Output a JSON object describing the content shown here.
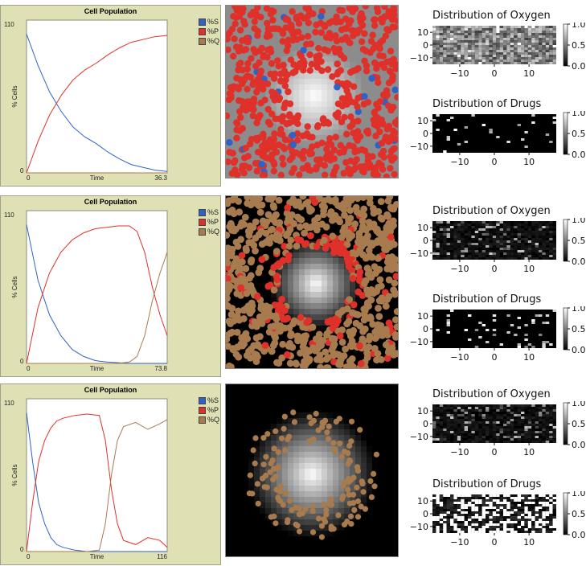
{
  "panels": [
    {
      "plot": {
        "title": "Cell Population",
        "y_label": "% Cells",
        "x_label": "Time",
        "y_max_label": "110",
        "y_min_label": "0",
        "x_min_label": "0",
        "x_max_label": "36.3"
      },
      "legend": [
        {
          "label": "%S",
          "color": "#2f62c8"
        },
        {
          "label": "%P",
          "color": "#e0302a"
        },
        {
          "label": "%Q",
          "color": "#a87b4f"
        }
      ],
      "world_view": {
        "background": "gray",
        "cell_colors": [
          "#e0302a",
          "#2f62c8"
        ]
      },
      "oxygen": {
        "title": "Distribution of Oxygen",
        "y_ticks": [
          "10",
          "0",
          "−10"
        ],
        "x_ticks": [
          "−10",
          "0",
          "10"
        ],
        "colorbar_ticks": [
          "1.0",
          "0.5",
          "0.0"
        ]
      },
      "drugs": {
        "title": "Distribution of Drugs",
        "y_ticks": [
          "10",
          "0",
          "−10"
        ],
        "x_ticks": [
          "−10",
          "0",
          "10"
        ],
        "colorbar_ticks": [
          "1.0",
          "0.5",
          "0.0"
        ]
      }
    },
    {
      "plot": {
        "title": "Cell Population",
        "y_label": "% Cells",
        "x_label": "Time",
        "y_max_label": "110",
        "y_min_label": "0",
        "x_min_label": "0",
        "x_max_label": "73.8"
      },
      "legend": [
        {
          "label": "%S",
          "color": "#2f62c8"
        },
        {
          "label": "%P",
          "color": "#e0302a"
        },
        {
          "label": "%Q",
          "color": "#a87b4f"
        }
      ],
      "world_view": {
        "background": "black",
        "cell_colors": [
          "#a87b4f",
          "#e0302a"
        ]
      },
      "oxygen": {
        "title": "Distribution of Oxygen",
        "y_ticks": [
          "10",
          "0",
          "−10"
        ],
        "x_ticks": [
          "−10",
          "0",
          "10"
        ],
        "colorbar_ticks": [
          "1.0",
          "0.5",
          "0.0"
        ]
      },
      "drugs": {
        "title": "Distribution of Drugs",
        "y_ticks": [
          "10",
          "0",
          "−10"
        ],
        "x_ticks": [
          "−10",
          "0",
          "10"
        ],
        "colorbar_ticks": [
          "1.0",
          "0.5",
          "0.0"
        ]
      }
    },
    {
      "plot": {
        "title": "Cell Population",
        "y_label": "% Cells",
        "x_label": "Time",
        "y_max_label": "110",
        "y_min_label": "0",
        "x_min_label": "0",
        "x_max_label": "116"
      },
      "legend": [
        {
          "label": "%S",
          "color": "#2f62c8"
        },
        {
          "label": "%P",
          "color": "#e0302a"
        },
        {
          "label": "%Q",
          "color": "#a87b4f"
        }
      ],
      "world_view": {
        "background": "black",
        "cell_colors": [
          "#a87b4f"
        ]
      },
      "oxygen": {
        "title": "Distribution of Oxygen",
        "y_ticks": [
          "10",
          "0",
          "−10"
        ],
        "x_ticks": [
          "−10",
          "0",
          "10"
        ],
        "colorbar_ticks": [
          "1.0",
          "0.5",
          "0.0"
        ]
      },
      "drugs": {
        "title": "Distribution of Drugs",
        "y_ticks": [
          "10",
          "0",
          "−10"
        ],
        "x_ticks": [
          "−10",
          "0",
          "10"
        ],
        "colorbar_ticks": [
          "1.0",
          "0.5",
          "0.0"
        ]
      }
    }
  ],
  "chart_data": [
    {
      "type": "line",
      "title": "Cell Population",
      "xlabel": "Time",
      "ylabel": "% Cells",
      "xlim": [
        0,
        36.3
      ],
      "ylim": [
        0,
        110
      ],
      "x": [
        0,
        3,
        6,
        9,
        12,
        15,
        18,
        21,
        24,
        27,
        30,
        33,
        36.3
      ],
      "series": [
        {
          "name": "%S",
          "color": "#2f62c8",
          "values": [
            100,
            77,
            58,
            44,
            33,
            26,
            21,
            15,
            10,
            6,
            4,
            2,
            1
          ]
        },
        {
          "name": "%P",
          "color": "#e0302a",
          "values": [
            0,
            23,
            42,
            56,
            67,
            74,
            79,
            85,
            90,
            94,
            96,
            98,
            99
          ]
        },
        {
          "name": "%Q",
          "color": "#a87b4f",
          "values": [
            0,
            0,
            0,
            0,
            0,
            0,
            0,
            0,
            0,
            0,
            0,
            0,
            0
          ]
        }
      ]
    },
    {
      "type": "line",
      "title": "Cell Population",
      "xlabel": "Time",
      "ylabel": "% Cells",
      "xlim": [
        0,
        73.8
      ],
      "ylim": [
        0,
        110
      ],
      "x": [
        0,
        6,
        12,
        18,
        24,
        30,
        36,
        42,
        48,
        54,
        58,
        62,
        66,
        70,
        73.8
      ],
      "series": [
        {
          "name": "%S",
          "color": "#2f62c8",
          "values": [
            100,
            60,
            35,
            20,
            10,
            5,
            2,
            1,
            0.5,
            0,
            0,
            0,
            0,
            0,
            0
          ]
        },
        {
          "name": "%P",
          "color": "#e0302a",
          "values": [
            0,
            40,
            65,
            80,
            89,
            94,
            97,
            98,
            99,
            99,
            95,
            80,
            55,
            35,
            20
          ]
        },
        {
          "name": "%Q",
          "color": "#a87b4f",
          "values": [
            0,
            0,
            0,
            0,
            0,
            0,
            0,
            0,
            0,
            1,
            5,
            20,
            45,
            65,
            80
          ]
        }
      ]
    },
    {
      "type": "line",
      "title": "Cell Population",
      "xlabel": "Time",
      "ylabel": "% Cells",
      "xlim": [
        0,
        116
      ],
      "ylim": [
        0,
        110
      ],
      "x": [
        0,
        5,
        10,
        15,
        20,
        25,
        30,
        40,
        50,
        60,
        65,
        70,
        75,
        80,
        90,
        100,
        110,
        116
      ],
      "series": [
        {
          "name": "%S",
          "color": "#2f62c8",
          "values": [
            100,
            65,
            35,
            20,
            10,
            5,
            3,
            1,
            0,
            0,
            0,
            0,
            0,
            0,
            0,
            0,
            0,
            0
          ]
        },
        {
          "name": "%P",
          "color": "#e0302a",
          "values": [
            0,
            35,
            65,
            80,
            89,
            94,
            96,
            98,
            99,
            98,
            80,
            45,
            20,
            8,
            5,
            10,
            8,
            3
          ]
        },
        {
          "name": "%Q",
          "color": "#a87b4f",
          "values": [
            0,
            0,
            0,
            0,
            0,
            0,
            0,
            0,
            0,
            1,
            20,
            55,
            80,
            90,
            93,
            88,
            92,
            95
          ]
        }
      ]
    }
  ]
}
